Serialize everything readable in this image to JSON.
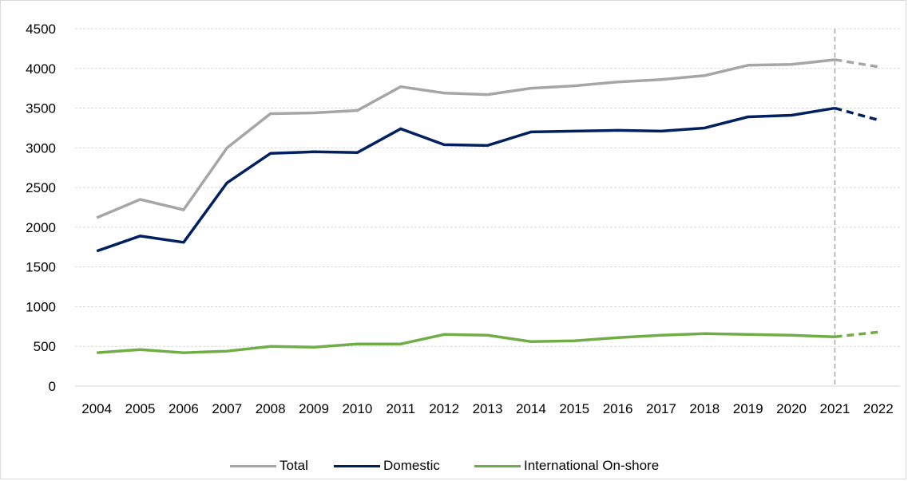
{
  "chart_data": {
    "type": "line",
    "title": "",
    "xlabel": "",
    "ylabel": "",
    "ylim": [
      0,
      4500
    ],
    "yticks": [
      0,
      500,
      1000,
      1500,
      2000,
      2500,
      3000,
      3500,
      4000,
      4500
    ],
    "grid": "horizontal dashed",
    "legend_position": "bottom",
    "categories": [
      "2004",
      "2005",
      "2006",
      "2007",
      "2008",
      "2009",
      "2010",
      "2011",
      "2012",
      "2013",
      "2014",
      "2015",
      "2016",
      "2017",
      "2018",
      "2019",
      "2020",
      "2021",
      "2022"
    ],
    "forecast_from": "2021",
    "divider_at": "2021",
    "series": [
      {
        "name": "Total",
        "color": "#a6a6a6",
        "values": [
          2120,
          2350,
          2220,
          3000,
          3430,
          3440,
          3470,
          3770,
          3690,
          3670,
          3750,
          3780,
          3830,
          3860,
          3910,
          4040,
          4050,
          4110,
          4020
        ]
      },
      {
        "name": "Domestic",
        "color": "#002060",
        "values": [
          1700,
          1890,
          1810,
          2560,
          2930,
          2950,
          2940,
          3240,
          3040,
          3030,
          3200,
          3210,
          3220,
          3210,
          3250,
          3390,
          3410,
          3500,
          3350
        ]
      },
      {
        "name": "International On-shore",
        "color": "#70ad47",
        "values": [
          420,
          460,
          420,
          440,
          500,
          490,
          530,
          530,
          650,
          640,
          560,
          570,
          610,
          640,
          660,
          650,
          640,
          620,
          680
        ]
      }
    ]
  }
}
